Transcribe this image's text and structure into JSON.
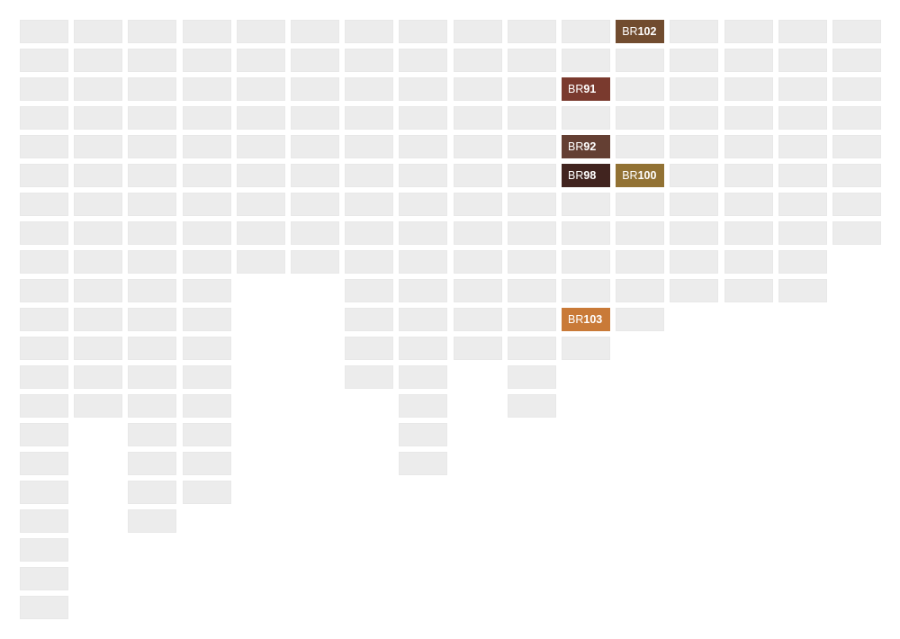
{
  "swatch_default_color": "#ececec",
  "columns": [
    {
      "count": 21
    },
    {
      "count": 14
    },
    {
      "count": 18
    },
    {
      "count": 17
    },
    {
      "count": 9
    },
    {
      "count": 9
    },
    {
      "count": 13
    },
    {
      "count": 16
    },
    {
      "count": 12
    },
    {
      "count": 14
    },
    {
      "count": 12,
      "labeled": [
        {
          "row": 2,
          "prefix": "BR",
          "number": "91",
          "color": "#7a3a2e"
        },
        {
          "row": 4,
          "prefix": "BR",
          "number": "92",
          "color": "#643f33"
        },
        {
          "row": 5,
          "prefix": "BR",
          "number": "98",
          "color": "#41241f"
        },
        {
          "row": 10,
          "prefix": "BR",
          "number": "103",
          "color": "#c97a38"
        }
      ]
    },
    {
      "count": 11,
      "labeled": [
        {
          "row": 0,
          "prefix": "BR",
          "number": "102",
          "color": "#714c2f"
        },
        {
          "row": 5,
          "prefix": "BR",
          "number": "100",
          "color": "#927234"
        }
      ]
    },
    {
      "count": 10
    },
    {
      "count": 10
    },
    {
      "count": 10
    },
    {
      "count": 8
    }
  ]
}
